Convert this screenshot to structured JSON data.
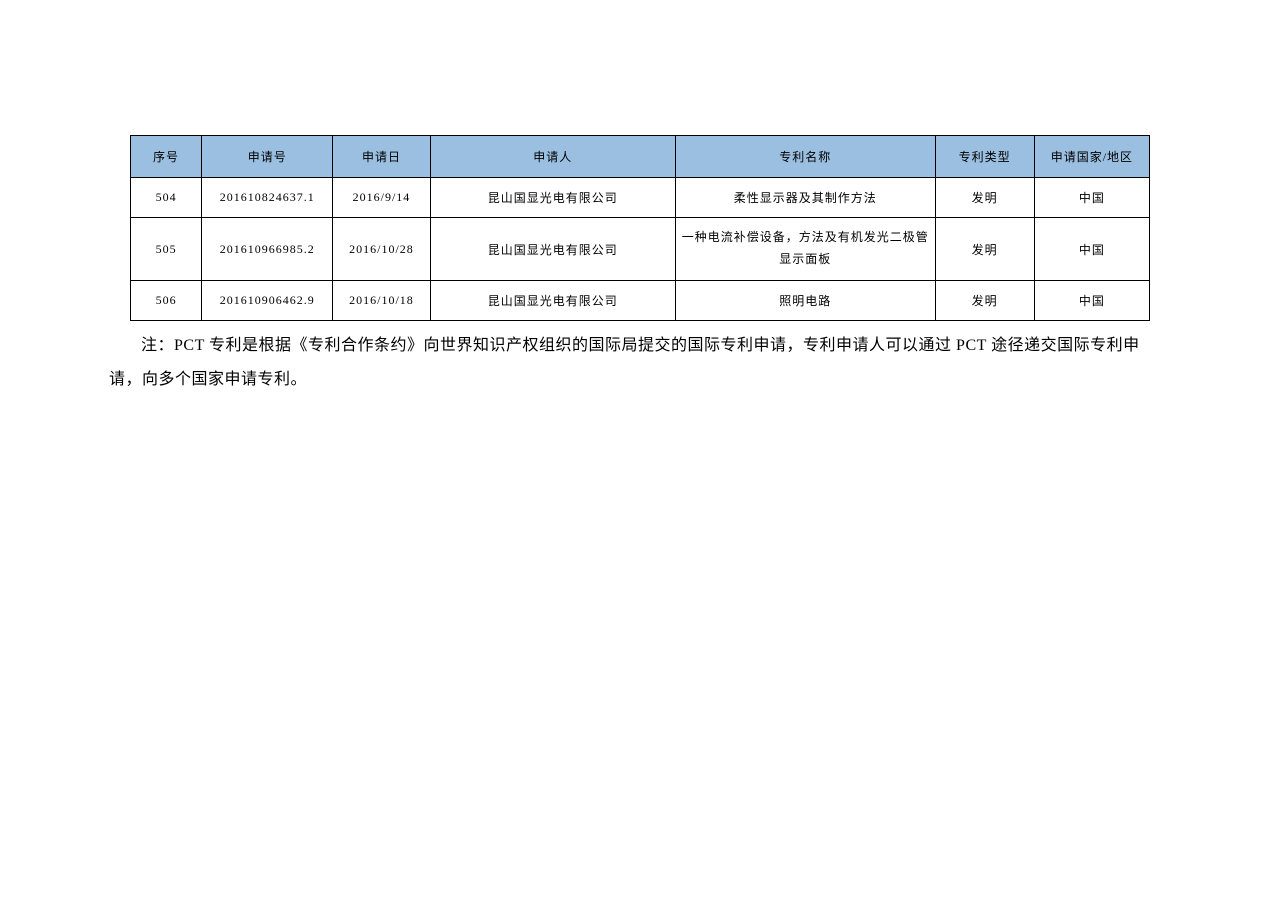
{
  "table": {
    "header_bg": "#9bbfe1",
    "columns": [
      "序号",
      "申请号",
      "申请日",
      "申请人",
      "专利名称",
      "专利类型",
      "申请国家/地区"
    ],
    "rows": [
      {
        "index": "504",
        "appno": "201610824637.1",
        "date": "2016/9/14",
        "applicant": "昆山国显光电有限公司",
        "name": "柔性显示器及其制作方法",
        "type": "发明",
        "region": "中国"
      },
      {
        "index": "505",
        "appno": "201610966985.2",
        "date": "2016/10/28",
        "applicant": "昆山国显光电有限公司",
        "name": "一种电流补偿设备，方法及有机发光二极管显示面板",
        "type": "发明",
        "region": "中国"
      },
      {
        "index": "506",
        "appno": "201610906462.9",
        "date": "2016/10/18",
        "applicant": "昆山国显光电有限公司",
        "name": "照明电路",
        "type": "发明",
        "region": "中国"
      }
    ]
  },
  "note": "注：PCT 专利是根据《专利合作条约》向世界知识产权组织的国际局提交的国际专利申请，专利申请人可以通过 PCT 途径递交国际专利申请，向多个国家申请专利。"
}
